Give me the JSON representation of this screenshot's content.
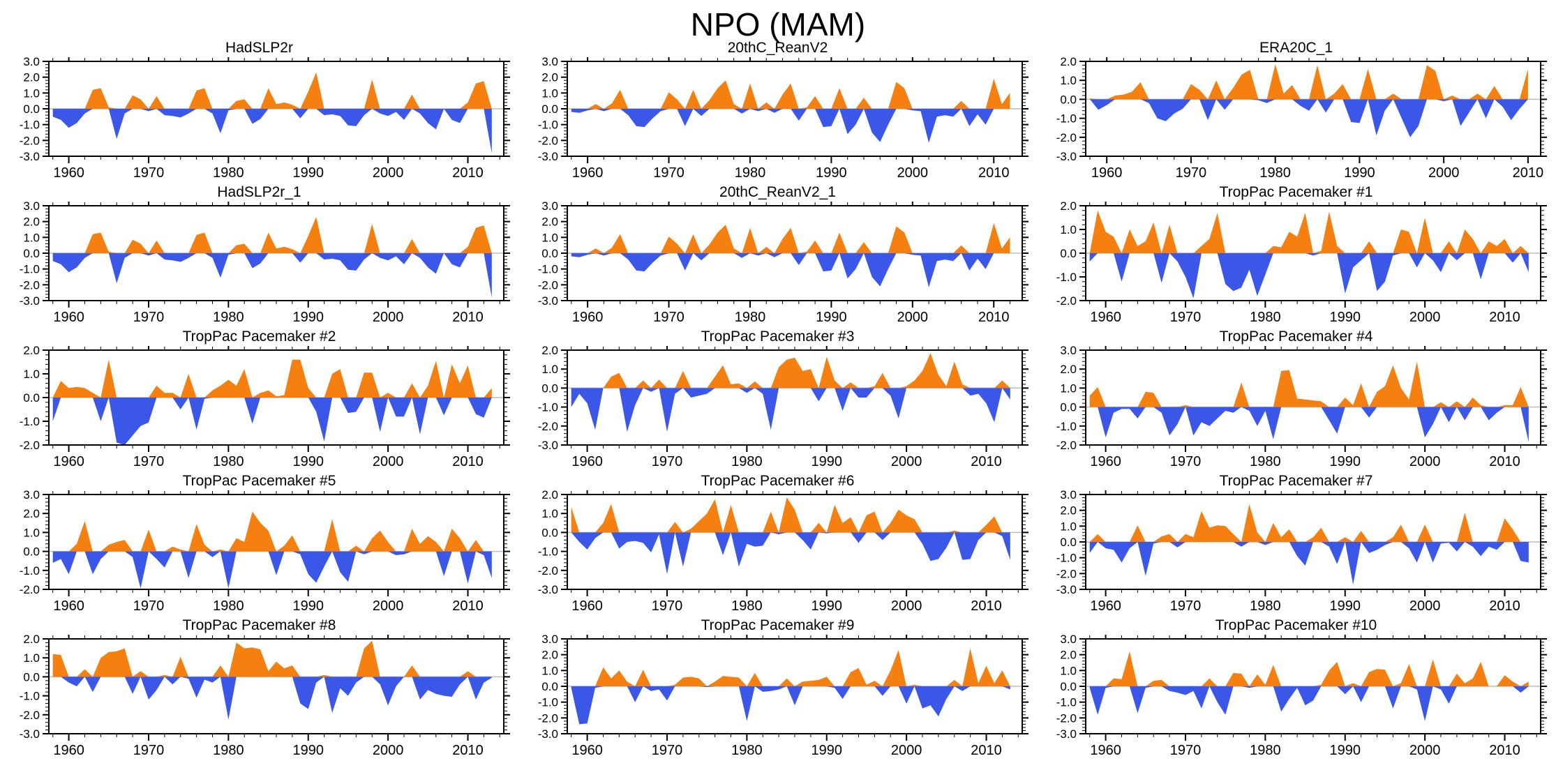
{
  "page_title": "NPO (MAM)",
  "chart_data": {
    "type": "area",
    "x_axis_label_ticks": [
      1960,
      1970,
      1980,
      1990,
      2000,
      2010
    ],
    "x_minor_step": 2,
    "y_major_step": 1.0,
    "y_minor_step": 0.2,
    "start_year": 1958,
    "grid": "off",
    "colors": {
      "positive_fill": "#F5800F",
      "negative_fill": "#3A57E8",
      "zero_line": "#bcbcbc",
      "axis": "#000000"
    },
    "charts": [
      {
        "title": "HadSLP2r",
        "ylim": [
          -3.0,
          3.0
        ],
        "end_year": 2013,
        "values": [
          -0.5,
          -0.7,
          -1.2,
          -0.9,
          -0.3,
          1.2,
          1.3,
          0.1,
          -1.9,
          -0.3,
          0.85,
          0.6,
          -0.15,
          0.8,
          -0.4,
          -0.45,
          -0.55,
          -0.3,
          1.15,
          1.3,
          -0.3,
          -1.55,
          -0.1,
          0.5,
          0.6,
          -0.95,
          -0.65,
          1.3,
          0.3,
          0.4,
          0.25,
          -0.6,
          1.1,
          2.3,
          -0.4,
          -0.35,
          -0.45,
          -1.05,
          -1.1,
          -0.4,
          1.85,
          -0.3,
          -0.45,
          -0.2,
          -0.7,
          0.9,
          -0.3,
          -0.9,
          -1.3,
          0.0,
          -0.7,
          -0.9,
          0.4,
          1.6,
          1.75,
          -2.8
        ]
      },
      {
        "title": "20thC_ReanV2",
        "ylim": [
          -3.0,
          3.0
        ],
        "end_year": 2012,
        "values": [
          -0.2,
          -0.25,
          -0.1,
          0.3,
          -0.15,
          0.35,
          1.2,
          -0.4,
          -1.1,
          -1.15,
          -0.6,
          -0.15,
          1.05,
          0.6,
          -1.1,
          1.2,
          -0.45,
          0.55,
          1.3,
          1.8,
          0.3,
          -0.3,
          1.6,
          -0.15,
          0.4,
          -0.25,
          0.9,
          1.6,
          -0.75,
          0.1,
          0.8,
          -1.15,
          -1.1,
          1.3,
          -1.6,
          -1.0,
          0.7,
          -1.5,
          -2.1,
          -1.0,
          1.7,
          1.3,
          -0.1,
          -0.15,
          -2.15,
          -0.5,
          -0.4,
          -0.5,
          0.5,
          -1.1,
          -0.35,
          -1.0,
          1.9,
          0.3,
          1.0
        ]
      },
      {
        "title": "ERA20C_1",
        "ylim": [
          -3.0,
          2.0
        ],
        "end_year": 2010,
        "values": [
          0.05,
          -0.55,
          -0.3,
          0.2,
          0.25,
          0.4,
          0.9,
          -0.2,
          -1.0,
          -1.15,
          -0.75,
          -0.5,
          0.8,
          0.5,
          -1.1,
          1.0,
          -0.55,
          0.6,
          1.3,
          1.55,
          -0.05,
          -0.2,
          1.85,
          0.3,
          0.75,
          -0.35,
          -0.6,
          1.8,
          -0.7,
          0.3,
          0.8,
          -1.2,
          -1.25,
          1.6,
          -1.9,
          -0.6,
          0.3,
          -1.0,
          -2.0,
          -1.4,
          1.8,
          1.5,
          -0.1,
          0.2,
          -1.4,
          -0.7,
          0.3,
          -1.0,
          0.7,
          -0.4,
          -1.1,
          -0.5,
          1.6
        ]
      },
      {
        "title": "HadSLP2r_1",
        "ylim": [
          -3.0,
          3.0
        ],
        "end_year": 2013,
        "values": [
          -0.5,
          -0.7,
          -1.2,
          -0.9,
          -0.3,
          1.2,
          1.3,
          0.1,
          -1.9,
          -0.3,
          0.85,
          0.6,
          -0.15,
          0.8,
          -0.4,
          -0.45,
          -0.55,
          -0.3,
          1.15,
          1.3,
          -0.3,
          -1.55,
          -0.1,
          0.5,
          0.6,
          -0.95,
          -0.65,
          1.3,
          0.3,
          0.4,
          0.25,
          -0.6,
          1.1,
          2.3,
          -0.4,
          -0.35,
          -0.45,
          -1.05,
          -1.1,
          -0.4,
          1.85,
          -0.3,
          -0.45,
          -0.2,
          -0.7,
          0.9,
          -0.3,
          -0.9,
          -1.3,
          0.0,
          -0.7,
          -0.9,
          0.4,
          1.6,
          1.75,
          -2.8
        ]
      },
      {
        "title": "20thC_ReanV2_1",
        "ylim": [
          -3.0,
          3.0
        ],
        "end_year": 2012,
        "values": [
          -0.2,
          -0.25,
          -0.1,
          0.3,
          -0.15,
          0.35,
          1.2,
          -0.4,
          -1.1,
          -1.15,
          -0.6,
          -0.15,
          1.05,
          0.6,
          -1.1,
          1.2,
          -0.45,
          0.55,
          1.3,
          1.8,
          0.3,
          -0.3,
          1.6,
          -0.15,
          0.4,
          -0.25,
          0.9,
          1.6,
          -0.75,
          0.1,
          0.8,
          -1.15,
          -1.1,
          1.3,
          -1.6,
          -1.0,
          0.7,
          -1.5,
          -2.1,
          -1.0,
          1.7,
          1.3,
          -0.1,
          -0.15,
          -2.15,
          -0.5,
          -0.4,
          -0.5,
          0.5,
          -1.1,
          -0.35,
          -1.0,
          1.9,
          0.3,
          1.0
        ]
      },
      {
        "title": "TropPac Pacemaker #1",
        "ylim": [
          -2.0,
          2.0
        ],
        "end_year": 2013,
        "values": [
          -0.35,
          1.8,
          0.9,
          0.7,
          -1.2,
          1.0,
          0.3,
          0.5,
          1.3,
          -1.25,
          1.2,
          -0.35,
          -1.0,
          -1.9,
          0.3,
          0.6,
          1.7,
          -1.3,
          -1.6,
          -1.45,
          -0.7,
          -1.8,
          -0.9,
          0.3,
          0.25,
          0.9,
          0.7,
          1.7,
          -0.1,
          0.1,
          1.75,
          0.3,
          -1.7,
          -0.6,
          -0.3,
          0.5,
          -1.6,
          -1.2,
          -0.1,
          1.0,
          0.9,
          -0.6,
          1.5,
          -0.3,
          -0.8,
          0.5,
          -0.3,
          1.0,
          0.6,
          -1.1,
          0.5,
          0.3,
          0.6,
          -0.4,
          0.3,
          -0.8
        ]
      },
      {
        "title": "TropPac Pacemaker #2",
        "ylim": [
          -2.0,
          2.0
        ],
        "end_year": 2013,
        "values": [
          -1.0,
          0.7,
          0.4,
          0.45,
          0.4,
          0.2,
          -1.0,
          1.6,
          -1.9,
          -2.0,
          -1.6,
          -1.2,
          -1.05,
          0.5,
          0.2,
          0.2,
          -0.5,
          1.0,
          -1.35,
          -0.05,
          0.3,
          0.5,
          0.75,
          0.5,
          1.2,
          -1.1,
          0.2,
          0.3,
          0.05,
          0.1,
          1.6,
          1.6,
          0.4,
          -0.6,
          -1.85,
          1.0,
          1.2,
          -0.65,
          -0.6,
          1.05,
          1.05,
          -1.45,
          0.2,
          -0.8,
          -0.8,
          0.6,
          -1.55,
          0.5,
          1.55,
          -0.75,
          1.4,
          0.6,
          1.35,
          -0.7,
          -0.85,
          0.4
        ]
      },
      {
        "title": "TropPac Pacemaker #3",
        "ylim": [
          -3.0,
          2.0
        ],
        "end_year": 2013,
        "values": [
          -1.0,
          -0.3,
          -0.8,
          -2.2,
          0.0,
          0.6,
          0.8,
          -2.3,
          -0.9,
          0.4,
          -0.2,
          0.45,
          -2.3,
          -0.3,
          0.9,
          -0.5,
          -0.4,
          -0.3,
          0.6,
          1.2,
          0.2,
          0.25,
          -0.25,
          0.35,
          -0.3,
          -2.2,
          1.1,
          1.5,
          1.6,
          0.9,
          1.0,
          -0.7,
          1.65,
          0.4,
          -1.2,
          0.3,
          -0.5,
          -0.5,
          0.1,
          0.8,
          -0.4,
          -1.6,
          0.1,
          0.4,
          0.9,
          1.85,
          0.7,
          0.1,
          1.4,
          0.2,
          -0.4,
          -0.3,
          -0.8,
          -1.8,
          0.4,
          -0.6
        ]
      },
      {
        "title": "TropPac Pacemaker #4",
        "ylim": [
          -2.0,
          3.0
        ],
        "end_year": 2013,
        "values": [
          0.6,
          1.05,
          -1.6,
          -0.3,
          -0.1,
          -0.1,
          -0.6,
          0.8,
          0.75,
          -0.3,
          -1.5,
          -0.9,
          0.1,
          -1.5,
          -0.8,
          -1.0,
          -0.6,
          -0.2,
          -0.3,
          1.3,
          -0.2,
          -1.0,
          -0.2,
          -1.7,
          1.9,
          1.95,
          0.45,
          0.4,
          0.35,
          0.3,
          -0.7,
          -1.4,
          0.5,
          0.1,
          1.25,
          -0.55,
          0.8,
          1.1,
          2.2,
          1.0,
          0.4,
          2.4,
          -1.6,
          -0.9,
          0.25,
          -0.8,
          0.3,
          -0.7,
          0.5,
          0.1,
          -0.7,
          -0.3,
          0.1,
          0.1,
          1.05,
          -1.85
        ]
      },
      {
        "title": "TropPac Pacemaker #5",
        "ylim": [
          -2.0,
          3.0
        ],
        "end_year": 2013,
        "values": [
          -0.6,
          -0.4,
          -1.2,
          0.4,
          1.6,
          -1.2,
          -0.4,
          0.35,
          0.5,
          0.6,
          -0.3,
          -1.95,
          1.15,
          -0.4,
          -0.85,
          0.25,
          0.1,
          -1.4,
          1.45,
          0.35,
          -0.3,
          0.1,
          -1.95,
          0.7,
          0.5,
          2.1,
          1.5,
          1.1,
          -1.25,
          0.3,
          0.85,
          -0.15,
          -1.2,
          -1.65,
          -0.8,
          1.7,
          -1.1,
          -1.6,
          0.3,
          -0.15,
          0.7,
          1.1,
          0.5,
          -0.2,
          -0.15,
          1.2,
          0.4,
          0.8,
          0.5,
          -1.3,
          1.2,
          0.7,
          -1.7,
          0.6,
          -0.2,
          -1.4
        ]
      },
      {
        "title": "TropPac Pacemaker #6",
        "ylim": [
          -3.0,
          2.0
        ],
        "end_year": 2013,
        "values": [
          1.35,
          -0.5,
          -0.9,
          -0.3,
          0.5,
          1.5,
          -0.85,
          -0.5,
          -0.45,
          -0.55,
          -1.05,
          -0.1,
          -2.2,
          0.55,
          -1.8,
          0.2,
          0.6,
          1.0,
          1.75,
          -1.2,
          1.45,
          -1.8,
          -0.6,
          -0.75,
          -0.7,
          1.1,
          -0.1,
          1.85,
          1.2,
          -0.4,
          -0.9,
          0.5,
          -0.05,
          1.45,
          0.5,
          0.8,
          -0.55,
          0.9,
          1.1,
          -0.4,
          0.5,
          1.2,
          0.9,
          0.7,
          -0.6,
          -1.5,
          -1.4,
          -0.8,
          0.1,
          -1.45,
          -1.4,
          -0.4,
          0.4,
          0.85,
          -0.2,
          -1.45
        ]
      },
      {
        "title": "TropPac Pacemaker #7",
        "ylim": [
          -3.0,
          3.0
        ],
        "end_year": 2013,
        "values": [
          -0.7,
          0.5,
          -0.4,
          -0.5,
          -1.3,
          -0.4,
          1.05,
          -2.15,
          -0.1,
          0.35,
          0.5,
          -0.35,
          0.5,
          0.3,
          1.95,
          0.9,
          1.05,
          1.0,
          0.5,
          -0.3,
          2.4,
          0.6,
          -0.2,
          1.2,
          0.3,
          0.8,
          -0.9,
          -1.5,
          0.3,
          0.9,
          -0.3,
          -1.4,
          0.3,
          -2.7,
          0.7,
          -0.7,
          -0.5,
          -0.2,
          0.3,
          1.1,
          -0.4,
          -1.3,
          1.1,
          -1.3,
          -0.1,
          -0.05,
          -0.6,
          1.85,
          -0.3,
          -0.9,
          -0.3,
          -0.5,
          1.5,
          0.8,
          -1.2,
          -1.3
        ]
      },
      {
        "title": "TropPac Pacemaker #8",
        "ylim": [
          -3.0,
          2.0
        ],
        "end_year": 2013,
        "values": [
          1.2,
          1.15,
          -0.3,
          -0.5,
          0.4,
          -0.8,
          1.0,
          1.3,
          1.35,
          1.5,
          -0.9,
          0.3,
          -1.2,
          -0.7,
          0.1,
          -0.4,
          1.05,
          -0.1,
          -1.1,
          -0.15,
          -0.3,
          0.6,
          -2.25,
          1.8,
          1.5,
          1.55,
          1.45,
          0.3,
          0.8,
          0.45,
          0.6,
          -1.4,
          -1.7,
          -0.3,
          0.1,
          -1.9,
          -0.6,
          -1.0,
          -0.3,
          1.5,
          1.9,
          -0.4,
          -1.5,
          -0.5,
          0.0,
          0.6,
          -1.2,
          -0.7,
          -0.9,
          -1.0,
          -1.05,
          -0.4,
          0.3,
          -1.2,
          -0.3,
          -0.05
        ]
      },
      {
        "title": "TropPac Pacemaker #9",
        "ylim": [
          -3.0,
          3.0
        ],
        "end_year": 2013,
        "values": [
          -0.1,
          -2.4,
          -2.35,
          -0.1,
          1.2,
          0.5,
          1.0,
          0.3,
          -1.0,
          1.05,
          -0.3,
          -0.2,
          -0.9,
          0.1,
          0.55,
          0.6,
          0.5,
          -0.05,
          0.3,
          0.65,
          0.6,
          0.55,
          -2.2,
          0.85,
          -0.35,
          -0.3,
          -0.2,
          0.5,
          -1.2,
          0.3,
          0.35,
          0.4,
          0.6,
          -0.1,
          -0.8,
          0.9,
          1.15,
          0.1,
          0.35,
          -0.6,
          1.0,
          2.3,
          -1.1,
          0.1,
          -1.4,
          -1.2,
          -1.9,
          -0.8,
          0.4,
          -0.3,
          2.4,
          0.2,
          1.3,
          0.2,
          1.0,
          -0.2
        ]
      },
      {
        "title": "TropPac Pacemaker #10",
        "ylim": [
          -3.0,
          3.0
        ],
        "end_year": 2013,
        "values": [
          -0.1,
          -1.8,
          -0.1,
          0.5,
          0.45,
          2.2,
          -1.7,
          -0.1,
          0.35,
          0.4,
          -0.3,
          -0.4,
          -0.55,
          -0.3,
          -1.4,
          0.5,
          -1.0,
          -1.8,
          0.85,
          0.8,
          -0.1,
          0.75,
          0.1,
          1.35,
          -1.6,
          -0.8,
          -0.1,
          -1.2,
          -0.9,
          0.1,
          1.0,
          1.55,
          -0.5,
          0.2,
          -1.0,
          0.9,
          1.1,
          1.05,
          -1.4,
          0.2,
          1.4,
          -0.2,
          -2.2,
          1.7,
          -0.2,
          -1.1,
          0.8,
          0.2,
          0.5,
          1.55,
          0.0,
          0.0,
          0.7,
          0.3,
          -0.4,
          0.3
        ]
      }
    ]
  }
}
